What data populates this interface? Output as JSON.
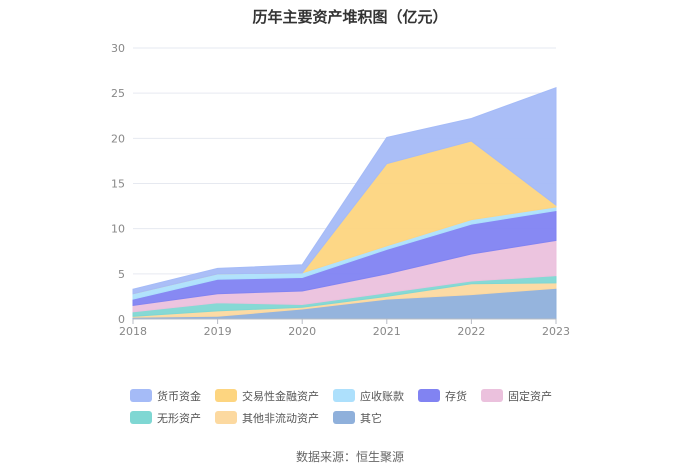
{
  "chart_data": {
    "type": "area",
    "title": "历年主要资产堆积图（亿元）",
    "source": "数据来源：恒生聚源",
    "categories": [
      "2018",
      "2019",
      "2020",
      "2021",
      "2022",
      "2023"
    ],
    "ylim": [
      0,
      30
    ],
    "yticks": [
      "0",
      "5",
      "10",
      "15",
      "20",
      "25",
      "30"
    ],
    "stacked": true,
    "grid": true,
    "legend_position": "bottom",
    "series": [
      {
        "name": "其它",
        "color": "#8fb0db",
        "values": [
          0.2,
          0.3,
          1.1,
          2.2,
          2.7,
          3.4
        ]
      },
      {
        "name": "其他非流动资产",
        "color": "#fcd9a0",
        "values": [
          0.1,
          0.6,
          0.2,
          0.3,
          1.2,
          0.6
        ]
      },
      {
        "name": "无形资产",
        "color": "#7fd7d3",
        "values": [
          0.5,
          0.9,
          0.3,
          0.4,
          0.3,
          0.8
        ]
      },
      {
        "name": "固定资产",
        "color": "#ebc1dd",
        "values": [
          0.7,
          1.0,
          1.5,
          2.1,
          3.0,
          3.9
        ]
      },
      {
        "name": "存货",
        "color": "#8183f2",
        "values": [
          0.7,
          1.6,
          1.5,
          2.7,
          3.3,
          3.3
        ]
      },
      {
        "name": "应收账款",
        "color": "#ade0fc",
        "values": [
          0.6,
          0.6,
          0.5,
          0.4,
          0.5,
          0.4
        ]
      },
      {
        "name": "交易性金融资产",
        "color": "#fdd580",
        "values": [
          0.0,
          0.0,
          0.0,
          9.1,
          8.7,
          0.2
        ]
      },
      {
        "name": "货币资金",
        "color": "#a5bbf7",
        "values": [
          0.5,
          0.6,
          0.9,
          2.9,
          2.5,
          13.0
        ]
      }
    ],
    "legend_order": [
      "货币资金",
      "交易性金融资产",
      "应收账款",
      "存货",
      "固定资产",
      "无形资产",
      "其他非流动资产",
      "其它"
    ]
  }
}
